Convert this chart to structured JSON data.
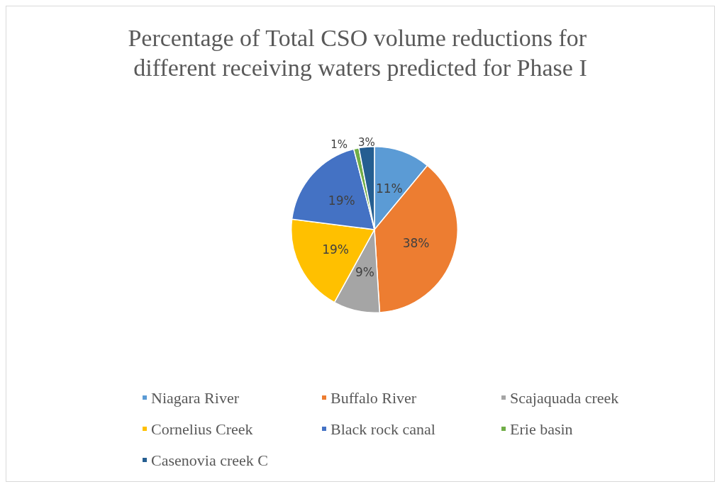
{
  "chart_data": {
    "type": "pie",
    "title": "Percentage of Total CSO volume reductions for different receiving waters predicted for Phase I",
    "categories": [
      "Niagara River",
      "Buffalo River",
      "Scajaquada creek",
      "Cornelius Creek",
      "Black rock canal",
      "Erie basin",
      "Casenovia creek C"
    ],
    "values": [
      11,
      38,
      9,
      19,
      19,
      1,
      3
    ],
    "value_labels": [
      "11%",
      "38%",
      "9%",
      "19%",
      "19%",
      "1%",
      "3%"
    ],
    "colors": [
      "#5b9bd5",
      "#ed7d31",
      "#a5a5a5",
      "#ffc000",
      "#4472c4",
      "#70ad47",
      "#255e91"
    ],
    "legend": "bottom"
  }
}
